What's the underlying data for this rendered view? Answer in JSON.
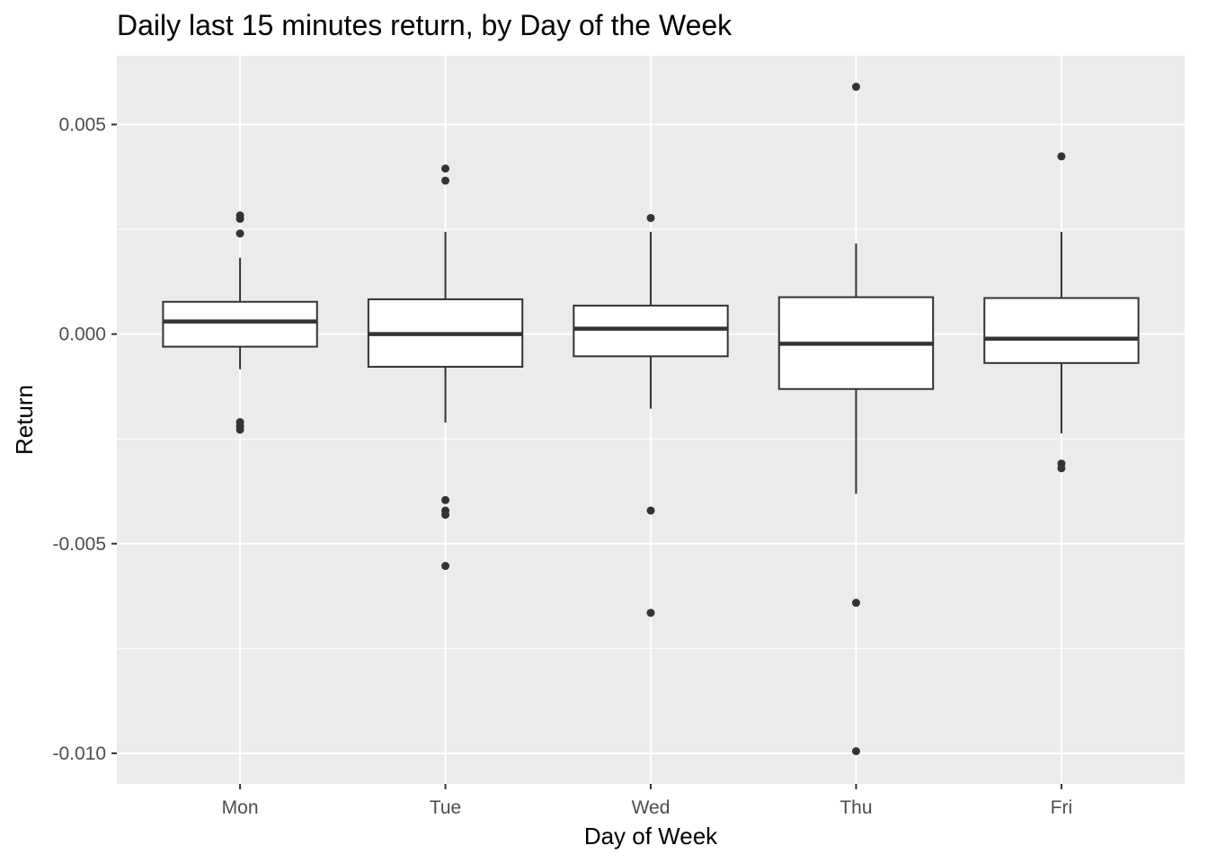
{
  "chart_data": {
    "type": "boxplot",
    "title": "Daily last 15 minutes return, by Day of the Week",
    "xlabel": "Day of Week",
    "ylabel": "Return",
    "categories": [
      "Mon",
      "Tue",
      "Wed",
      "Thu",
      "Fri"
    ],
    "y_ticks": [
      0.005,
      0.0,
      -0.005,
      -0.01
    ],
    "y_tick_labels": [
      "0.005",
      "0.000",
      "-0.005",
      "-0.010"
    ],
    "ylim": [
      -0.01073,
      0.00664
    ],
    "grid": true,
    "legend": "none",
    "colors": {
      "panel": "#ebebeb",
      "grid": "#ffffff",
      "box_fill": "#ffffff",
      "line": "#333333",
      "outlier": "#333333"
    },
    "boxes": [
      {
        "category": "Mon",
        "whisker_low": -0.00084,
        "q1": -0.0003,
        "median": 0.0003,
        "q3": 0.00077,
        "whisker_high": 0.00182,
        "outliers": [
          0.00283,
          0.00275,
          0.0024,
          -0.0021,
          -0.0022,
          -0.00228
        ]
      },
      {
        "category": "Tue",
        "whisker_low": -0.00211,
        "q1": -0.00078,
        "median": 0.0,
        "q3": 0.00083,
        "whisker_high": 0.00244,
        "outliers": [
          0.00395,
          0.00366,
          -0.00396,
          -0.00421,
          -0.00431,
          -0.00553
        ]
      },
      {
        "category": "Wed",
        "whisker_low": -0.00178,
        "q1": -0.00053,
        "median": 0.00013,
        "q3": 0.00068,
        "whisker_high": 0.00244,
        "outliers": [
          0.00277,
          -0.00421,
          -0.00665
        ]
      },
      {
        "category": "Thu",
        "whisker_low": -0.00381,
        "q1": -0.00131,
        "median": -0.00023,
        "q3": 0.00088,
        "whisker_high": 0.00216,
        "outliers": [
          0.0059,
          -0.00641,
          -0.00995
        ]
      },
      {
        "category": "Fri",
        "whisker_low": -0.00237,
        "q1": -0.00069,
        "median": -0.00011,
        "q3": 0.00086,
        "whisker_high": 0.00244,
        "outliers": [
          0.00424,
          -0.00309,
          -0.0032
        ]
      }
    ]
  }
}
